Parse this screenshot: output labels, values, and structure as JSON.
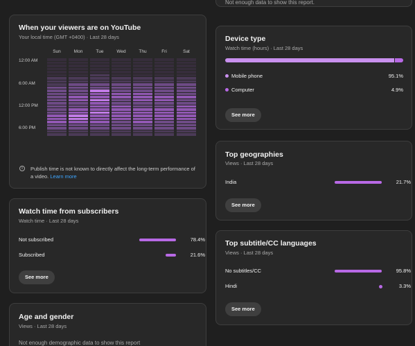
{
  "top_partial": {
    "text": "Not enough data to show this report."
  },
  "viewers": {
    "title": "When your viewers are on YouTube",
    "subtitle": "Your local time (GMT +0400) · Last 28 days",
    "days": [
      "Sun",
      "Mon",
      "Tue",
      "Wed",
      "Thu",
      "Fri",
      "Sat"
    ],
    "times": [
      "12:00 AM",
      "6:00 AM",
      "12:00 PM",
      "6:00 PM"
    ],
    "heatmap_levels": [
      [
        0,
        0,
        0,
        0,
        0,
        0,
        1,
        1,
        1,
        2,
        2,
        2,
        2,
        2,
        2,
        2,
        2,
        2,
        3,
        3,
        3,
        2,
        2,
        1,
        1
      ],
      [
        0,
        0,
        0,
        0,
        0,
        0,
        1,
        1,
        2,
        2,
        2,
        2,
        3,
        3,
        2,
        2,
        3,
        3,
        4,
        4,
        3,
        2,
        2,
        1,
        1
      ],
      [
        0,
        0,
        0,
        0,
        0,
        1,
        1,
        1,
        2,
        2,
        4,
        3,
        3,
        4,
        3,
        3,
        3,
        4,
        3,
        3,
        3,
        2,
        2,
        1,
        1
      ],
      [
        0,
        0,
        0,
        0,
        0,
        0,
        1,
        1,
        2,
        2,
        2,
        3,
        3,
        2,
        2,
        3,
        3,
        3,
        3,
        3,
        2,
        2,
        2,
        1,
        1
      ],
      [
        0,
        0,
        0,
        0,
        0,
        0,
        1,
        1,
        2,
        2,
        2,
        3,
        3,
        3,
        2,
        2,
        3,
        3,
        3,
        3,
        3,
        2,
        2,
        1,
        1
      ],
      [
        0,
        0,
        0,
        0,
        0,
        0,
        1,
        1,
        2,
        2,
        2,
        2,
        3,
        3,
        2,
        2,
        3,
        3,
        3,
        3,
        2,
        2,
        2,
        1,
        1
      ],
      [
        0,
        0,
        0,
        0,
        0,
        0,
        1,
        1,
        2,
        2,
        2,
        2,
        3,
        2,
        2,
        3,
        3,
        3,
        3,
        3,
        2,
        2,
        2,
        1,
        1
      ]
    ],
    "heat_colors": [
      "#362d3b",
      "#4b3a57",
      "#6e4b86",
      "#9158b3",
      "#c07be6"
    ],
    "note_text": "Publish time is not known to directly affect the long-term performance of a video.",
    "note_link": "Learn more",
    "info_icon": "i"
  },
  "subscribers": {
    "title": "Watch time from subscribers",
    "subtitle": "Watch time · Last 28 days",
    "rows": [
      {
        "label": "Not subscribed",
        "value": "78.4%",
        "fraction": 0.784
      },
      {
        "label": "Subscribed",
        "value": "21.6%",
        "fraction": 0.216
      }
    ],
    "see_more": "See more"
  },
  "age_gender": {
    "title": "Age and gender",
    "subtitle": "Views · Last 28 days",
    "text": "Not enough demographic data to show this report"
  },
  "device": {
    "title": "Device type",
    "subtitle": "Watch time (hours) · Last 28 days",
    "rows": [
      {
        "label": "Mobile phone",
        "value": "95.1%",
        "fraction": 0.951
      },
      {
        "label": "Computer",
        "value": "4.9%",
        "fraction": 0.049
      }
    ],
    "see_more": "See more"
  },
  "geographies": {
    "title": "Top geographies",
    "subtitle": "Views · Last 28 days",
    "rows": [
      {
        "label": "India",
        "value": "21.7%",
        "fraction": 1.0
      }
    ],
    "see_more": "See more"
  },
  "subtitles": {
    "title": "Top subtitle/CC languages",
    "subtitle": "Views · Last 28 days",
    "rows": [
      {
        "label": "No subtitles/CC",
        "value": "95.8%",
        "fraction": 1.0
      },
      {
        "label": "Hindi",
        "value": "3.3%",
        "fraction": 0.034
      }
    ],
    "see_more": "See more"
  },
  "colors": {
    "accent": "#b869e5",
    "accent_light": "#c990ee",
    "card_bg": "#282828",
    "page_bg": "#1f1f1f"
  }
}
